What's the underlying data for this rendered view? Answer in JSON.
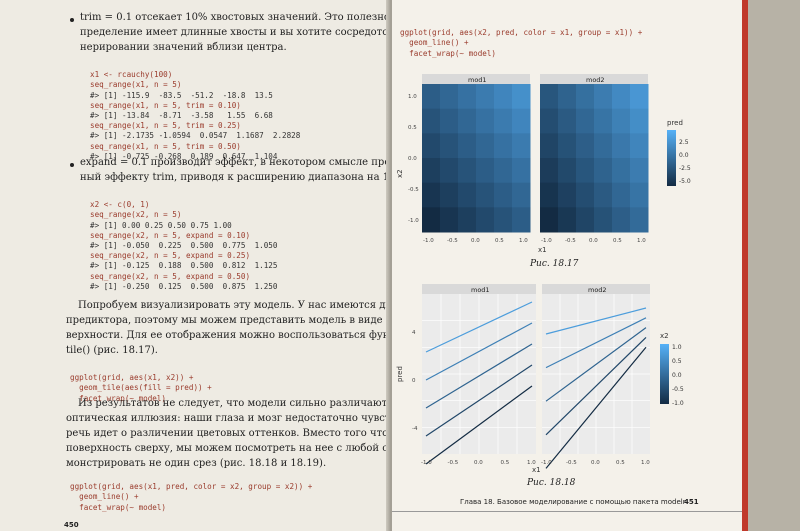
{
  "left_page": {
    "bullet1": {
      "intro": "trim = 0.1 отсекает 10% хвостовых значений. Это полезно, если рас-",
      "line2": "пределение имеет длинные хвосты и вы хотите сосредоточиться на ге-",
      "line3": "нерировании значений вблизи центра."
    },
    "code1": [
      "x1 <- rcauchy(100)",
      "seq_range(x1, n = 5)",
      "#> [1] -115.9  -83.5  -51.2  -18.8  13.5",
      "seq_range(x1, n = 5, trim = 0.10)",
      "#> [1] -13.84  -8.71  -3.58   1.55  6.68",
      "seq_range(x1, n = 5, trim = 0.25)",
      "#> [1] -2.1735 -1.0594  0.0547  1.1687  2.2828",
      "seq_range(x1, n = 5, trim = 0.50)",
      "#> [1] -0.725 -0.268  0.189  0.647  1.104"
    ],
    "bullet2": {
      "line1": "expand = 0.1 производит эффект, в некотором смысле противополож-",
      "line2": "ный эффекту trim, приводя к расширению диапазона на 10%."
    },
    "code2": [
      "x2 <- c(0, 1)",
      "seq_range(x2, n = 5)",
      "#> [1] 0.00 0.25 0.50 0.75 1.00",
      "seq_range(x2, n = 5, expand = 0.10)",
      "#> [1] -0.050  0.225  0.500  0.775  1.050",
      "seq_range(x2, n = 5, expand = 0.25)",
      "#> [1] -0.125  0.188  0.500  0.812  1.125",
      "seq_range(x2, n = 5, expand = 0.50)",
      "#> [1] -0.250  0.125  0.500  0.875  1.250"
    ],
    "para1": [
      "Попробуем визуализировать эту модель. У нас имеются два непрерывных",
      "предиктора, поэтому мы можем представить модель в виде трехмерной по-",
      "верхности. Для ее отображения можно воспользоваться функцией geom_",
      "tile() (рис. 18.17)."
    ],
    "code3": [
      "ggplot(grid, aes(x1, x2)) +",
      "  geom_tile(aes(fill = pred)) +",
      "  facet_wrap(~ model)"
    ],
    "para2": [
      "Из результатов не следует, что модели сильно различаются! Отчасти это",
      "оптическая иллюзия: наши глаза и мозг недостаточно чувствительны, если",
      "речь идет о различении цветовых оттенков. Вместо того чтобы рассматривать",
      "поверхность сверху, мы можем посмотреть на нее с любой стороны и про-",
      "монстрировать не один срез (рис. 18.18 и 18.19)."
    ],
    "code4": [
      "ggplot(grid, aes(x1, pred, color = x2, group = x2)) +",
      "  geom_line() +",
      "  facet_wrap(~ model)"
    ],
    "page_number": "450"
  },
  "right_page": {
    "code_top": [
      "ggplot(grid, aes(x2, pred, color = x1, group = x1)) +",
      "  geom_line() +",
      "  facet_wrap(~ model)"
    ],
    "fig1": {
      "caption": "Рис. 18.17",
      "facets": [
        "mod1",
        "mod2"
      ],
      "xlabel": "x1",
      "ylabel": "x2",
      "legend_title": "pred",
      "legend_ticks": [
        "2.5",
        "0.0",
        "-2.5",
        "-5.0"
      ],
      "x_ticks": [
        "-1.0",
        "-0.5",
        "0.0",
        "0.5",
        "1.0"
      ],
      "y_ticks": [
        "1.0",
        "0.5",
        "0.0",
        "-0.5",
        "-1.0"
      ]
    },
    "fig2": {
      "caption": "Рис. 18.18",
      "facets": [
        "mod1",
        "mod2"
      ],
      "xlabel": "x1",
      "ylabel": "pred",
      "legend_title": "x2",
      "legend_ticks": [
        "1.0",
        "0.5",
        "0.0",
        "-0.5",
        "-1.0"
      ],
      "x_ticks": [
        "-1.0",
        "-0.5",
        "0.0",
        "0.5",
        "1.0"
      ],
      "y_ticks": [
        "4",
        "0",
        "-4"
      ]
    },
    "footer_text": "Глава 18. Базовое моделирование с помощью пакета modelr",
    "page_number": "451"
  },
  "colors": {
    "code": "#9a3b2c",
    "page_edge": "#c0392b"
  }
}
